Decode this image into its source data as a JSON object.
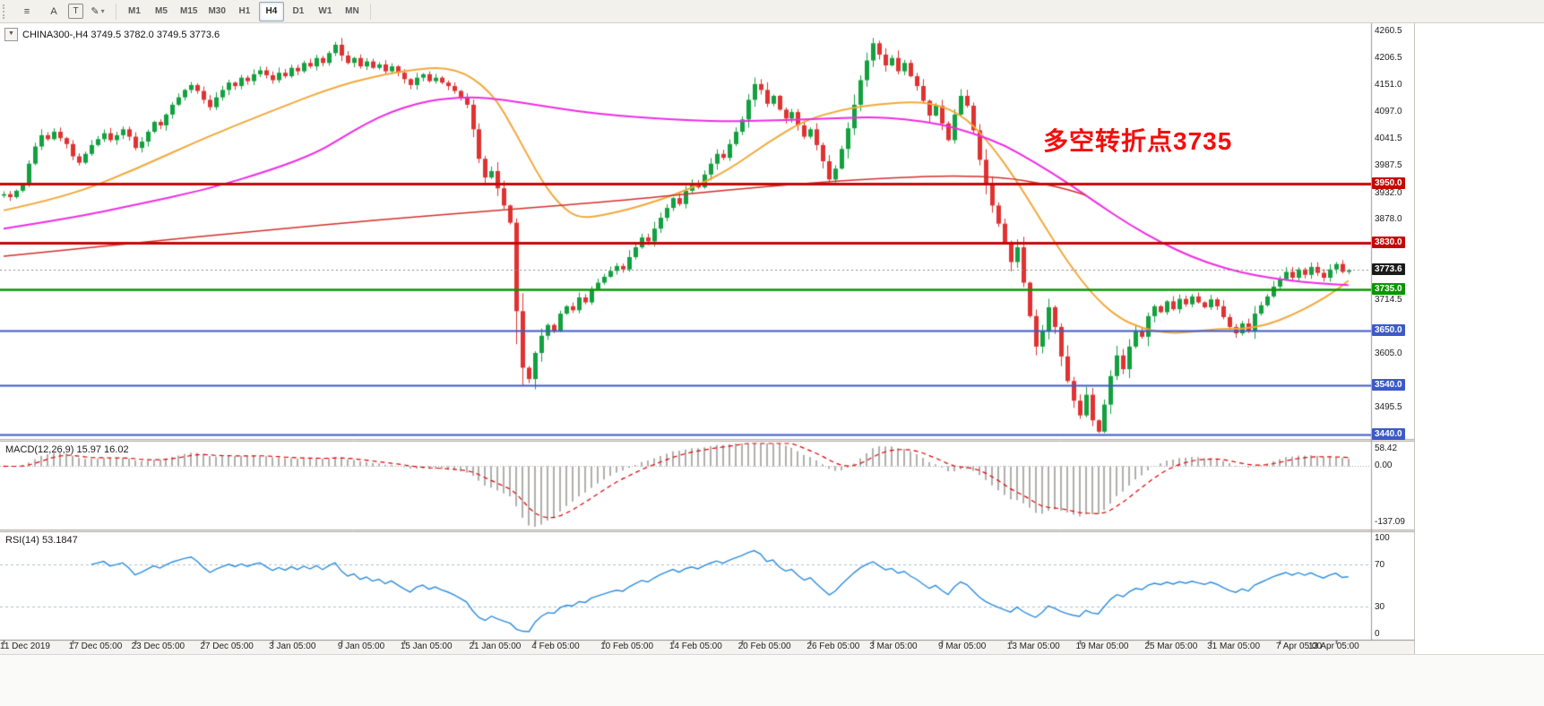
{
  "toolbar": {
    "icons": [
      {
        "name": "chart-list",
        "glyph": "≡",
        "boxed": false,
        "dropdown": false
      },
      {
        "name": "cursor",
        "glyph": "A",
        "boxed": false,
        "dropdown": false
      },
      {
        "name": "text-tool",
        "glyph": "T",
        "boxed": true,
        "dropdown": false
      },
      {
        "name": "drawing-tools",
        "glyph": "✎",
        "boxed": false,
        "dropdown": true
      }
    ],
    "dropdown_glyph": "▾",
    "timeframes": [
      {
        "label": "M1",
        "active": false
      },
      {
        "label": "M5",
        "active": false
      },
      {
        "label": "M15",
        "active": false
      },
      {
        "label": "M30",
        "active": false
      },
      {
        "label": "H1",
        "active": false
      },
      {
        "label": "H4",
        "active": true
      },
      {
        "label": "D1",
        "active": false
      },
      {
        "label": "W1",
        "active": false
      },
      {
        "label": "MN",
        "active": false
      }
    ]
  },
  "chart": {
    "oct_glyph": "▼",
    "symbol": "CHINA300-",
    "period": "H4",
    "header": "CHINA300-,H4 3749.5 3782.0 3749.5 3773.6",
    "annotation": {
      "text": "多空转折点3735",
      "color": "#f50d0d"
    }
  },
  "chart_data": {
    "type": "candlestick",
    "price_panel": {
      "ylim": [
        3430,
        4272
      ],
      "axis_ticks": [
        4260.5,
        4206.5,
        4151.0,
        4097.0,
        4041.5,
        3987.5,
        3932.0,
        3878.0,
        3714.5,
        3605.0,
        3495.5
      ],
      "up_color": "#13a13f",
      "down_color": "#e03232",
      "first_open": 3925,
      "candles_close": [
        3928,
        3922,
        3935,
        3948,
        3990,
        4025,
        4048,
        4040,
        4055,
        4042,
        4030,
        4005,
        3992,
        4010,
        4028,
        4040,
        4052,
        4038,
        4048,
        4060,
        4045,
        4022,
        4035,
        4055,
        4075,
        4068,
        4090,
        4110,
        4125,
        4140,
        4150,
        4138,
        4120,
        4105,
        4125,
        4140,
        4155,
        4148,
        4165,
        4158,
        4172,
        4180,
        4170,
        4160,
        4175,
        4168,
        4185,
        4178,
        4195,
        4188,
        4205,
        4195,
        4215,
        4232,
        4210,
        4195,
        4205,
        4188,
        4198,
        4185,
        4192,
        4178,
        4188,
        4175,
        4162,
        4150,
        4165,
        4172,
        4158,
        4165,
        4155,
        4148,
        4138,
        4125,
        4110,
        4060,
        4000,
        3962,
        3975,
        3940,
        3905,
        3870,
        3690,
        3575,
        3552,
        3605,
        3640,
        3662,
        3650,
        3685,
        3700,
        3692,
        3718,
        3708,
        3735,
        3748,
        3760,
        3772,
        3782,
        3775,
        3800,
        3820,
        3840,
        3832,
        3858,
        3880,
        3900,
        3920,
        3908,
        3935,
        3950,
        3942,
        3968,
        3990,
        4010,
        4002,
        4030,
        4055,
        4080,
        4120,
        4152,
        4140,
        4112,
        4128,
        4100,
        4082,
        4095,
        4068,
        4045,
        4060,
        4028,
        3995,
        3958,
        3980,
        4020,
        4062,
        4110,
        4160,
        4200,
        4235,
        4212,
        4190,
        4205,
        4178,
        4195,
        4168,
        4148,
        4118,
        4088,
        4108,
        4072,
        4038,
        4090,
        4128,
        4108,
        4058,
        3998,
        3948,
        3905,
        3868,
        3828,
        3790,
        3820,
        3748,
        3680,
        3618,
        3650,
        3698,
        3658,
        3598,
        3548,
        3508,
        3478,
        3520,
        3468,
        3445,
        3500,
        3558,
        3600,
        3572,
        3618,
        3650,
        3638,
        3680,
        3700,
        3688,
        3710,
        3694,
        3715,
        3704,
        3720,
        3708,
        3698,
        3714,
        3700,
        3678,
        3658,
        3645,
        3665,
        3650,
        3685,
        3702,
        3720,
        3740,
        3755,
        3770,
        3758,
        3775,
        3764,
        3780,
        3768,
        3758,
        3775,
        3786,
        3770,
        3773.6
      ],
      "ma_lines": [
        {
          "name": "ma-fast-orange",
          "color": "#f2a93b",
          "width": 2,
          "points": [
            [
              0,
              3895
            ],
            [
              10,
              3922
            ],
            [
              21,
              3978
            ],
            [
              32,
              4042
            ],
            [
              43,
              4098
            ],
            [
              54,
              4152
            ],
            [
              64,
              4180
            ],
            [
              72,
              4188
            ],
            [
              78,
              4138
            ],
            [
              82,
              4050
            ],
            [
              86,
              3955
            ],
            [
              89,
              3905
            ],
            [
              92,
              3878
            ],
            [
              97,
              3888
            ],
            [
              103,
              3908
            ],
            [
              110,
              3940
            ],
            [
              116,
              3978
            ],
            [
              122,
              4032
            ],
            [
              128,
              4078
            ],
            [
              134,
              4100
            ],
            [
              140,
              4112
            ],
            [
              146,
              4116
            ],
            [
              150,
              4108
            ],
            [
              154,
              4082
            ],
            [
              158,
              4026
            ],
            [
              162,
              3955
            ],
            [
              166,
              3872
            ],
            [
              170,
              3792
            ],
            [
              174,
              3725
            ],
            [
              178,
              3678
            ],
            [
              182,
              3655
            ],
            [
              186,
              3645
            ],
            [
              190,
              3648
            ],
            [
              194,
              3654
            ],
            [
              198,
              3654
            ],
            [
              202,
              3662
            ],
            [
              206,
              3682
            ],
            [
              210,
              3708
            ],
            [
              213,
              3732
            ],
            [
              215,
              3752
            ]
          ]
        },
        {
          "name": "ma-mid-magenta",
          "color": "#ef2ce4",
          "width": 2,
          "points": [
            [
              0,
              3858
            ],
            [
              11,
              3880
            ],
            [
              21,
              3906
            ],
            [
              32,
              3936
            ],
            [
              43,
              3978
            ],
            [
              50,
              4012
            ],
            [
              54,
              4042
            ],
            [
              58,
              4072
            ],
            [
              62,
              4096
            ],
            [
              66,
              4112
            ],
            [
              70,
              4122
            ],
            [
              75,
              4126
            ],
            [
              80,
              4120
            ],
            [
              86,
              4108
            ],
            [
              92,
              4096
            ],
            [
              98,
              4088
            ],
            [
              104,
              4082
            ],
            [
              110,
              4078
            ],
            [
              116,
              4076
            ],
            [
              122,
              4078
            ],
            [
              128,
              4080
            ],
            [
              134,
              4083
            ],
            [
              139,
              4085
            ],
            [
              144,
              4081
            ],
            [
              150,
              4070
            ],
            [
              155,
              4052
            ],
            [
              160,
              4028
            ],
            [
              165,
              3992
            ],
            [
              170,
              3952
            ],
            [
              175,
              3908
            ],
            [
              180,
              3866
            ],
            [
              185,
              3830
            ],
            [
              190,
              3800
            ],
            [
              195,
              3778
            ],
            [
              200,
              3763
            ],
            [
              205,
              3753
            ],
            [
              210,
              3747
            ],
            [
              215,
              3743
            ]
          ]
        },
        {
          "name": "ma-slow-red",
          "color": "#d2302c",
          "width": 1.5,
          "points": [
            [
              0,
              3802
            ],
            [
              20,
              3828
            ],
            [
              40,
              3852
            ],
            [
              60,
              3876
            ],
            [
              80,
              3896
            ],
            [
              100,
              3916
            ],
            [
              115,
              3936
            ],
            [
              130,
              3952
            ],
            [
              143,
              3962
            ],
            [
              152,
              3966
            ],
            [
              160,
              3962
            ],
            [
              166,
              3950
            ],
            [
              170,
              3938
            ],
            [
              173,
              3926
            ]
          ]
        }
      ],
      "hlines": [
        {
          "value": 3950.0,
          "color": "#c40808",
          "width": 3,
          "style": "solid"
        },
        {
          "value": 3830.0,
          "color": "#c40808",
          "width": 3,
          "style": "solid"
        },
        {
          "value": 3735.0,
          "color": "#0a9600",
          "width": 2.5,
          "style": "solid"
        },
        {
          "value": 3650.0,
          "color": "#3d5ac8",
          "width": 2,
          "style": "solid"
        },
        {
          "value": 3540.0,
          "color": "#3d5ac8",
          "width": 2,
          "style": "solid"
        },
        {
          "value": 3440.0,
          "color": "#3d5ac8",
          "width": 2,
          "style": "solid"
        },
        {
          "value": 3773.6,
          "color": "#8a8a8a",
          "width": 1,
          "style": "dotted"
        }
      ],
      "badges": [
        {
          "label": "3950.0",
          "value": 3950.0,
          "color": "#c40808"
        },
        {
          "label": "3830.0",
          "value": 3830.0,
          "color": "#c40808"
        },
        {
          "label": "3773.6",
          "value": 3773.6,
          "color": "#1b1b1b"
        },
        {
          "label": "3735.0",
          "value": 3735.0,
          "color": "#0a9600"
        },
        {
          "label": "3650.0",
          "value": 3650.0,
          "color": "#3d5ac8"
        },
        {
          "label": "3540.0",
          "value": 3540.0,
          "color": "#3d5ac8"
        },
        {
          "label": "3440.0",
          "value": 3440.0,
          "color": "#3d5ac8"
        }
      ],
      "current_price": 3773.6
    },
    "macd_panel": {
      "label": "MACD(12,26,9) 15.97 16.02",
      "axis_labels": [
        "58.42",
        "0.00",
        "-137.09"
      ],
      "histogram_color": "#b0afad",
      "signal_color": "#e00000"
    },
    "rsi_panel": {
      "label": "RSI(14) 53.1847",
      "axis_values": [
        100,
        70,
        30,
        0
      ],
      "levels": [
        70,
        30
      ],
      "line_color": "#2b8dde",
      "current": 53.1847
    },
    "time_labels": [
      {
        "label": "11 Dec 2019",
        "idx": 0
      },
      {
        "label": "17 Dec 05:00",
        "idx": 11
      },
      {
        "label": "23 Dec 05:00",
        "idx": 21
      },
      {
        "label": "27 Dec 05:00",
        "idx": 32
      },
      {
        "label": "3 Jan 05:00",
        "idx": 43
      },
      {
        "label": "9 Jan 05:00",
        "idx": 54
      },
      {
        "label": "15 Jan 05:00",
        "idx": 64
      },
      {
        "label": "21 Jan 05:00",
        "idx": 75
      },
      {
        "label": "4 Feb 05:00",
        "idx": 85
      },
      {
        "label": "10 Feb 05:00",
        "idx": 96
      },
      {
        "label": "14 Feb 05:00",
        "idx": 107
      },
      {
        "label": "20 Feb 05:00",
        "idx": 118
      },
      {
        "label": "26 Feb 05:00",
        "idx": 129
      },
      {
        "label": "3 Mar 05:00",
        "idx": 139
      },
      {
        "label": "9 Mar 05:00",
        "idx": 150
      },
      {
        "label": "13 Mar 05:00",
        "idx": 161
      },
      {
        "label": "19 Mar 05:00",
        "idx": 172
      },
      {
        "label": "25 Mar 05:00",
        "idx": 183
      },
      {
        "label": "31 Mar 05:00",
        "idx": 193
      },
      {
        "label": "7 Apr 05:00",
        "idx": 204
      },
      {
        "label": "13 Apr 05:00",
        "idx": 213
      }
    ]
  }
}
